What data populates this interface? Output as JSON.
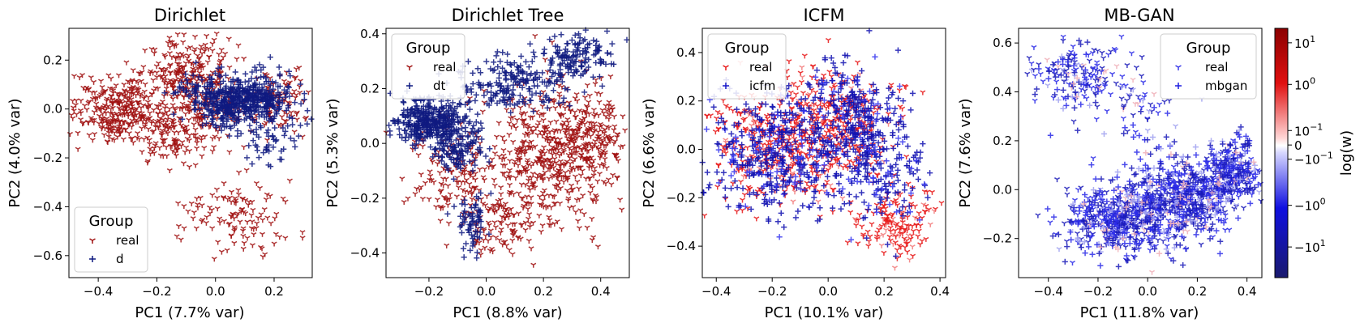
{
  "chart_data": [
    {
      "type": "scatter",
      "title": "Dirichlet",
      "xlabel": "PC1 (7.7% var)",
      "ylabel": "PC2 (4.0% var)",
      "xlim": [
        -0.5,
        0.33
      ],
      "ylim": [
        -0.69,
        0.33
      ],
      "xticks": [
        -0.4,
        -0.2,
        0.0,
        0.2
      ],
      "xtick_labels": [
        "−0.4",
        "−0.2",
        "0.0",
        "0.2"
      ],
      "yticks": [
        -0.6,
        -0.4,
        -0.2,
        0.0,
        0.2
      ],
      "ytick_labels": [
        "−0.6",
        "−0.4",
        "−0.2",
        "0.0",
        "0.2"
      ],
      "legend": {
        "title": "Group",
        "placement": "lower-left"
      },
      "series": [
        {
          "name": "real",
          "marker": "tri-down",
          "color": "#a01010",
          "clusters": [
            {
              "cx": -0.33,
              "cy": 0.0,
              "sx": 0.08,
              "sy": 0.07,
              "n": 320
            },
            {
              "cx": -0.1,
              "cy": 0.18,
              "sx": 0.07,
              "sy": 0.06,
              "n": 160
            },
            {
              "cx": -0.05,
              "cy": 0.02,
              "sx": 0.09,
              "sy": 0.09,
              "n": 200
            },
            {
              "cx": -0.15,
              "cy": -0.12,
              "sx": 0.06,
              "sy": 0.05,
              "n": 90
            },
            {
              "cx": 0.08,
              "cy": -0.45,
              "sx": 0.09,
              "sy": 0.08,
              "n": 120
            },
            {
              "cx": 0.22,
              "cy": 0.03,
              "sx": 0.05,
              "sy": 0.06,
              "n": 90
            }
          ]
        },
        {
          "name": "d",
          "marker": "plus",
          "color": "#0f1a80",
          "clusters": [
            {
              "cx": 0.12,
              "cy": 0.04,
              "sx": 0.07,
              "sy": 0.05,
              "n": 380
            },
            {
              "cx": 0.02,
              "cy": 0.0,
              "sx": 0.05,
              "sy": 0.05,
              "n": 120
            },
            {
              "cx": 0.18,
              "cy": -0.12,
              "sx": 0.05,
              "sy": 0.05,
              "n": 50
            },
            {
              "cx": -0.05,
              "cy": 0.08,
              "sx": 0.05,
              "sy": 0.04,
              "n": 60
            }
          ]
        }
      ]
    },
    {
      "type": "scatter",
      "title": "Dirichlet Tree",
      "xlabel": "PC1 (8.8% var)",
      "ylabel": "PC2 (5.3% var)",
      "xlim": [
        -0.35,
        0.5
      ],
      "ylim": [
        -0.49,
        0.42
      ],
      "xticks": [
        -0.2,
        0.0,
        0.2,
        0.4
      ],
      "xtick_labels": [
        "−0.2",
        "0.0",
        "0.2",
        "0.4"
      ],
      "yticks": [
        -0.4,
        -0.2,
        0.0,
        0.2,
        0.4
      ],
      "ytick_labels": [
        "−0.4",
        "−0.2",
        "0.0",
        "0.2",
        "0.4"
      ],
      "legend": {
        "title": "Group",
        "placement": "upper-left"
      },
      "series": [
        {
          "name": "real",
          "marker": "tri-down",
          "color": "#a01010",
          "clusters": [
            {
              "cx": 0.22,
              "cy": -0.05,
              "sx": 0.11,
              "sy": 0.12,
              "n": 520
            },
            {
              "cx": 0.38,
              "cy": 0.05,
              "sx": 0.06,
              "sy": 0.08,
              "n": 120
            },
            {
              "cx": 0.05,
              "cy": -0.3,
              "sx": 0.06,
              "sy": 0.06,
              "n": 100
            },
            {
              "cx": -0.12,
              "cy": -0.1,
              "sx": 0.08,
              "sy": 0.1,
              "n": 140
            }
          ]
        },
        {
          "name": "dt",
          "marker": "plus",
          "color": "#0f1a80",
          "clusters": [
            {
              "cx": -0.2,
              "cy": 0.08,
              "sx": 0.06,
              "sy": 0.04,
              "n": 350
            },
            {
              "cx": -0.1,
              "cy": 0.0,
              "sx": 0.05,
              "sy": 0.06,
              "n": 140
            },
            {
              "cx": 0.1,
              "cy": 0.22,
              "sx": 0.1,
              "sy": 0.05,
              "n": 200
            },
            {
              "cx": 0.32,
              "cy": 0.32,
              "sx": 0.06,
              "sy": 0.04,
              "n": 130
            },
            {
              "cx": -0.05,
              "cy": -0.28,
              "sx": 0.03,
              "sy": 0.06,
              "n": 70
            }
          ]
        }
      ]
    },
    {
      "type": "scatter",
      "title": "ICFM",
      "xlabel": "PC1 (10.1% var)",
      "ylabel": "PC2 (6.6% var)",
      "xlim": [
        -0.45,
        0.42
      ],
      "ylim": [
        -0.53,
        0.5
      ],
      "xticks": [
        -0.4,
        -0.2,
        0.0,
        0.2,
        0.4
      ],
      "xtick_labels": [
        "−0.4",
        "−0.2",
        "0.0",
        "0.2",
        "0.4"
      ],
      "yticks": [
        -0.4,
        -0.2,
        0.0,
        0.2,
        0.4
      ],
      "ytick_labels": [
        "−0.4",
        "−0.2",
        "0.0",
        "0.2",
        "0.4"
      ],
      "legend": {
        "title": "Group",
        "placement": "upper-left"
      },
      "series": [
        {
          "name": "real",
          "marker": "tri-down",
          "color": "#e81818",
          "clusters": [
            {
              "cx": -0.18,
              "cy": 0.02,
              "sx": 0.12,
              "sy": 0.12,
              "n": 380
            },
            {
              "cx": 0.05,
              "cy": 0.1,
              "sx": 0.1,
              "sy": 0.12,
              "n": 240
            },
            {
              "cx": 0.25,
              "cy": -0.3,
              "sx": 0.08,
              "sy": 0.07,
              "n": 150
            }
          ]
        },
        {
          "name": "icfm",
          "marker": "plus",
          "color": "#1414c8",
          "clusters": [
            {
              "cx": -0.2,
              "cy": -0.02,
              "sx": 0.12,
              "sy": 0.13,
              "n": 400
            },
            {
              "cx": 0.08,
              "cy": 0.12,
              "sx": 0.09,
              "sy": 0.12,
              "n": 300
            },
            {
              "cx": 0.2,
              "cy": -0.1,
              "sx": 0.08,
              "sy": 0.1,
              "n": 160
            }
          ]
        }
      ]
    },
    {
      "type": "scatter",
      "title": "MB-GAN",
      "xlabel": "PC1 (11.8% var)",
      "ylabel": "PC2 (7.6% var)",
      "xlim": [
        -0.52,
        0.46
      ],
      "ylim": [
        -0.36,
        0.66
      ],
      "xticks": [
        -0.4,
        -0.2,
        0.0,
        0.2,
        0.4
      ],
      "xtick_labels": [
        "−0.4",
        "−0.2",
        "0.0",
        "0.2",
        "0.4"
      ],
      "yticks": [
        -0.2,
        0.0,
        0.2,
        0.4,
        0.6
      ],
      "ytick_labels": [
        "−0.2",
        "0.0",
        "0.2",
        "0.4",
        "0.6"
      ],
      "legend": {
        "title": "Group",
        "placement": "upper-right"
      },
      "series": [
        {
          "name": "real",
          "marker": "tri-down",
          "color": "#3a3ae8",
          "clusters": [
            {
              "cx": -0.25,
              "cy": 0.48,
              "sx": 0.1,
              "sy": 0.07,
              "n": 120
            },
            {
              "cx": -0.05,
              "cy": 0.35,
              "sx": 0.08,
              "sy": 0.06,
              "n": 40
            },
            {
              "cx": -0.1,
              "cy": -0.12,
              "sx": 0.12,
              "sy": 0.07,
              "n": 260
            },
            {
              "cx": 0.15,
              "cy": -0.05,
              "sx": 0.1,
              "sy": 0.07,
              "n": 220
            },
            {
              "cx": 0.32,
              "cy": 0.05,
              "sx": 0.06,
              "sy": 0.06,
              "n": 150
            }
          ]
        },
        {
          "name": "mbgan",
          "marker": "plus",
          "color": "#1f1fe0",
          "clusters": [
            {
              "cx": -0.1,
              "cy": -0.12,
              "sx": 0.12,
              "sy": 0.07,
              "n": 320
            },
            {
              "cx": 0.15,
              "cy": -0.03,
              "sx": 0.1,
              "sy": 0.07,
              "n": 300
            },
            {
              "cx": 0.33,
              "cy": 0.08,
              "sx": 0.05,
              "sy": 0.07,
              "n": 160
            },
            {
              "cx": -0.3,
              "cy": 0.45,
              "sx": 0.07,
              "sy": 0.08,
              "n": 60
            },
            {
              "cx": 0.0,
              "cy": 0.2,
              "sx": 0.1,
              "sy": 0.1,
              "n": 40
            }
          ]
        }
      ]
    }
  ],
  "colorbar": {
    "label": "log(w)",
    "cmap": "seismic-like",
    "ticks": [
      {
        "label": "10",
        "exp": "1",
        "pos": 0.058
      },
      {
        "label": "10",
        "exp": "0",
        "pos": 0.225
      },
      {
        "label": "10",
        "exp": "−1",
        "pos": 0.41
      },
      {
        "label": "0",
        "exp": "",
        "pos": 0.468
      },
      {
        "label": "−10",
        "exp": "−1",
        "pos": 0.525
      },
      {
        "label": "−10",
        "exp": "0",
        "pos": 0.71
      },
      {
        "label": "−10",
        "exp": "1",
        "pos": 0.877
      }
    ]
  }
}
